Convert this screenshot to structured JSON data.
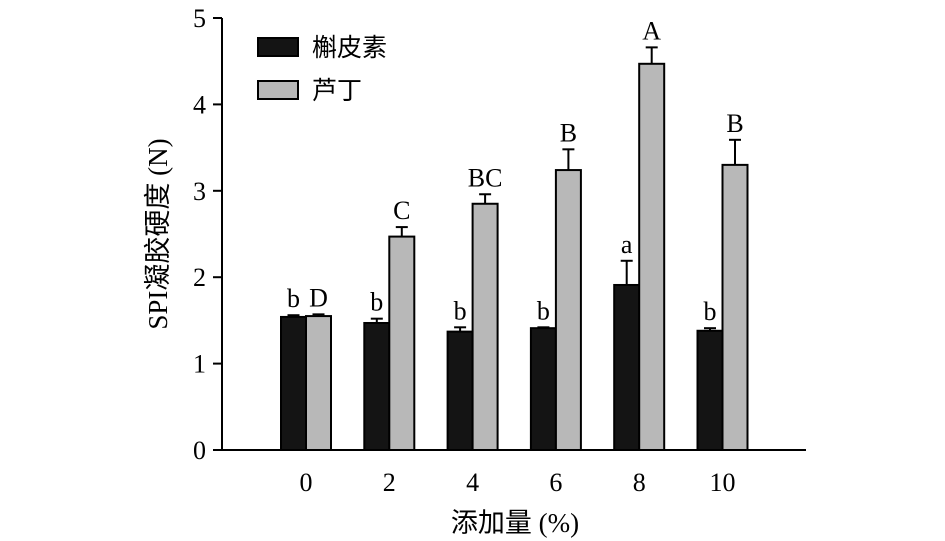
{
  "chart_data": {
    "type": "bar",
    "categories": [
      "0",
      "2",
      "4",
      "6",
      "8",
      "10"
    ],
    "xlabel": "添加量 (%)",
    "ylabel": "SPI凝胶硬度 (N)",
    "ylim": [
      0,
      5
    ],
    "yticks": [
      "0",
      "1",
      "2",
      "3",
      "4",
      "5"
    ],
    "legend_position": "top-left",
    "grid": false,
    "series": [
      {
        "name": "槲皮素",
        "color": "#141414",
        "values": [
          1.54,
          1.47,
          1.37,
          1.41,
          1.91,
          1.38
        ],
        "errors": [
          0.02,
          0.05,
          0.05,
          0.01,
          0.28,
          0.03
        ],
        "labels": [
          "b",
          "b",
          "b",
          "b",
          "a",
          "b"
        ]
      },
      {
        "name": "芦丁",
        "color": "#b8b8b8",
        "values": [
          1.55,
          2.47,
          2.85,
          3.24,
          4.47,
          3.3
        ],
        "errors": [
          0.02,
          0.11,
          0.11,
          0.24,
          0.19,
          0.29
        ],
        "labels": [
          "D",
          "C",
          "BC",
          "B",
          "A",
          "B"
        ]
      }
    ]
  }
}
